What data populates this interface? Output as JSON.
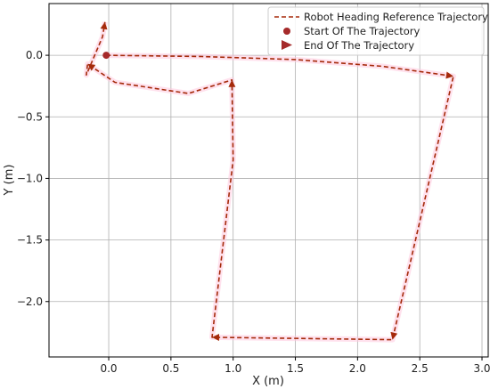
{
  "chart_data": {
    "type": "line",
    "xlabel": "X (m)",
    "ylabel": "Y (m)",
    "xlim": [
      -0.48,
      3.05
    ],
    "ylim": [
      -2.45,
      0.42
    ],
    "grid": true,
    "legend_position": "top-right",
    "x_ticks": [
      {
        "value": 0.0,
        "label": "0.0"
      },
      {
        "value": 0.5,
        "label": "0.5"
      },
      {
        "value": 1.0,
        "label": "1.0"
      },
      {
        "value": 1.5,
        "label": "1.5"
      },
      {
        "value": 2.0,
        "label": "2.0"
      },
      {
        "value": 2.5,
        "label": "2.5"
      },
      {
        "value": 3.0,
        "label": "3.0"
      }
    ],
    "y_ticks": [
      {
        "value": 0.0,
        "label": "0.0"
      },
      {
        "value": -0.5,
        "label": "−0.5"
      },
      {
        "value": -1.0,
        "label": "−1.0"
      },
      {
        "value": -1.5,
        "label": "−1.5"
      },
      {
        "value": -2.0,
        "label": "−2.0"
      }
    ],
    "series": [
      {
        "name": "Robot Heading Reference Trajectory",
        "style": "dashed",
        "color": "#a52a0a",
        "points": [
          {
            "x": -0.02,
            "y": 0.0
          },
          {
            "x": 0.75,
            "y": -0.01
          },
          {
            "x": 1.5,
            "y": -0.035
          },
          {
            "x": 2.2,
            "y": -0.09
          },
          {
            "x": 2.77,
            "y": -0.17
          },
          {
            "x": 2.28,
            "y": -2.31
          },
          {
            "x": 0.83,
            "y": -2.29
          },
          {
            "x": 1.0,
            "y": -0.85
          },
          {
            "x": 0.99,
            "y": -0.2
          },
          {
            "x": 0.64,
            "y": -0.31
          },
          {
            "x": 0.05,
            "y": -0.22
          },
          {
            "x": -0.17,
            "y": -0.07
          },
          {
            "x": -0.18,
            "y": -0.16
          },
          {
            "x": -0.05,
            "y": 0.15
          },
          {
            "x": -0.03,
            "y": 0.27
          }
        ],
        "arrow_points": [
          {
            "x": 2.77,
            "y": -0.17
          },
          {
            "x": 2.28,
            "y": -2.31
          },
          {
            "x": 0.83,
            "y": -2.29
          },
          {
            "x": 0.99,
            "y": -0.2
          },
          {
            "x": -0.17,
            "y": -0.07
          },
          {
            "x": -0.03,
            "y": 0.27
          }
        ]
      },
      {
        "name": "Start Of The Trajectory",
        "marker": "circle",
        "color": "#a52a2a",
        "points": [
          {
            "x": -0.02,
            "y": 0.0
          }
        ]
      },
      {
        "name": "End Of The Trajectory",
        "marker": "triangle-right",
        "color": "#a52a2a",
        "points": []
      }
    ]
  }
}
